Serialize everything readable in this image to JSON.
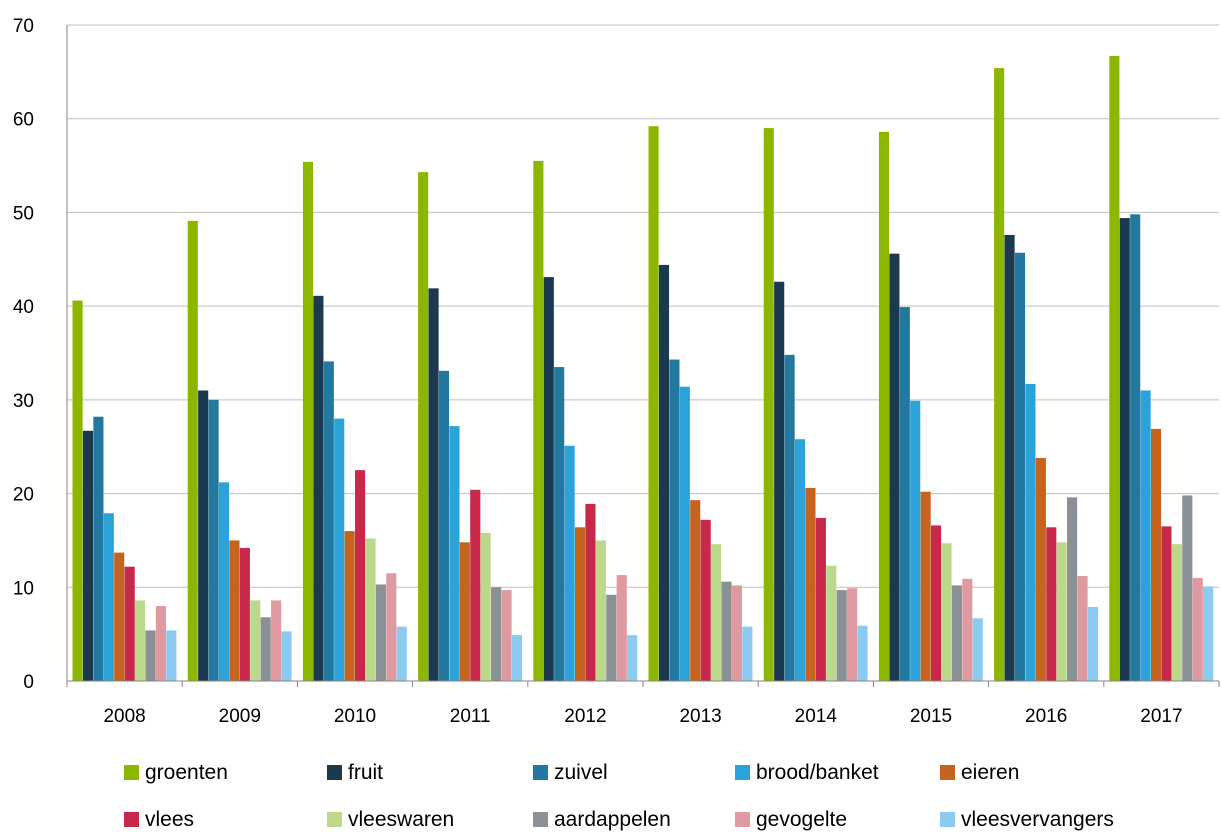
{
  "chart_data": {
    "type": "bar",
    "title": "",
    "xlabel": "",
    "ylabel": "",
    "ylim": [
      0,
      70
    ],
    "yticks": [
      0,
      10,
      20,
      30,
      40,
      50,
      60,
      70
    ],
    "grid": "horizontal",
    "legend_position": "bottom",
    "categories": [
      "2008",
      "2009",
      "2010",
      "2011",
      "2012",
      "2013",
      "2014",
      "2015",
      "2016",
      "2017"
    ],
    "series": [
      {
        "name": "groenten",
        "color": "#8db600",
        "values": [
          40.6,
          49.1,
          55.4,
          54.3,
          55.5,
          59.2,
          59.0,
          58.6,
          65.4,
          66.7
        ]
      },
      {
        "name": "fruit",
        "color": "#1b3a4f",
        "values": [
          26.7,
          31.0,
          41.1,
          41.9,
          43.1,
          44.4,
          42.6,
          45.6,
          47.6,
          49.4
        ]
      },
      {
        "name": "zuivel",
        "color": "#22789e",
        "values": [
          28.2,
          30.0,
          34.1,
          33.1,
          33.5,
          34.3,
          34.8,
          39.9,
          45.7,
          49.8
        ]
      },
      {
        "name": "brood/banket",
        "color": "#2ba3d9",
        "values": [
          17.9,
          21.2,
          28.0,
          27.2,
          25.1,
          31.4,
          25.8,
          29.9,
          31.7,
          31.0
        ]
      },
      {
        "name": "eieren",
        "color": "#c4641f",
        "values": [
          13.7,
          15.0,
          16.0,
          14.8,
          16.4,
          19.3,
          20.6,
          20.2,
          23.8,
          26.9
        ]
      },
      {
        "name": "vlees",
        "color": "#c8284a",
        "values": [
          12.2,
          14.2,
          22.5,
          20.4,
          18.9,
          17.2,
          17.4,
          16.6,
          16.4,
          16.5
        ]
      },
      {
        "name": "vleeswaren",
        "color": "#bcd88a",
        "values": [
          8.6,
          8.6,
          15.2,
          15.8,
          15.0,
          14.6,
          12.3,
          14.7,
          14.8,
          14.6
        ]
      },
      {
        "name": "aardappelen",
        "color": "#8a9095",
        "values": [
          5.4,
          6.8,
          10.3,
          10.0,
          9.2,
          10.6,
          9.7,
          10.2,
          19.6,
          19.8
        ]
      },
      {
        "name": "gevogelte",
        "color": "#de9aa0",
        "values": [
          8.0,
          8.6,
          11.5,
          9.7,
          11.3,
          10.2,
          9.9,
          10.9,
          11.2,
          11.0
        ]
      },
      {
        "name": "vleesvervangers",
        "color": "#8ccbef",
        "values": [
          5.4,
          5.3,
          5.8,
          4.9,
          4.9,
          5.8,
          5.9,
          6.7,
          7.9,
          10.1
        ]
      }
    ]
  }
}
